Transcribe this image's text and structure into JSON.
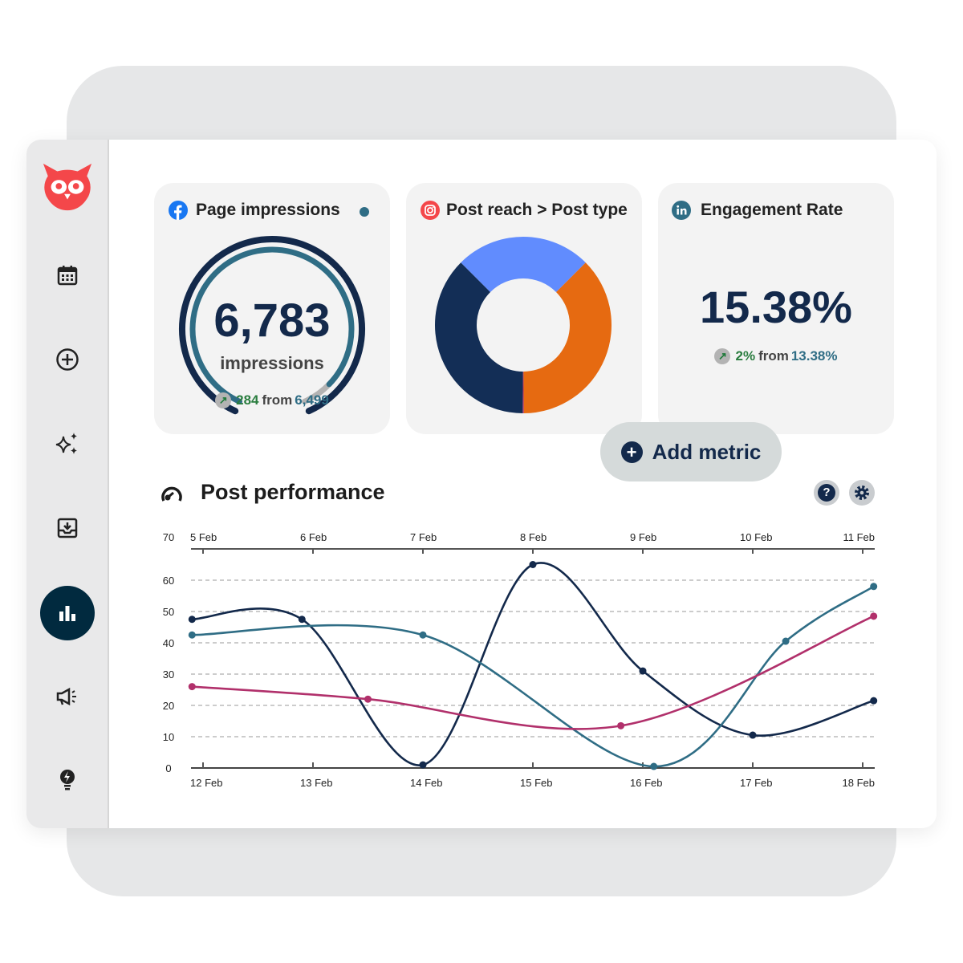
{
  "sidebar": {
    "items": [
      {
        "name": "calendar"
      },
      {
        "name": "compose"
      },
      {
        "name": "ai-assist"
      },
      {
        "name": "inbox"
      },
      {
        "name": "analytics",
        "active": true
      },
      {
        "name": "advertise"
      },
      {
        "name": "inspiration"
      }
    ]
  },
  "cards": {
    "impressions": {
      "title": "Page impressions",
      "value": "6,783",
      "unit": "impressions",
      "delta": "284",
      "from_label": "from",
      "previous": "6,499",
      "gauge_fill": 0.93,
      "icon": "facebook-icon",
      "color": "#1877f2"
    },
    "post_reach": {
      "title": "Post reach > Post type",
      "icon": "instagram-icon",
      "slices": [
        {
          "value": 25,
          "color": "#618cfe"
        },
        {
          "value": 37.4,
          "color": "#e66a11"
        },
        {
          "value": 0.2,
          "color": "#b1306b"
        },
        {
          "value": 37.4,
          "color": "#132e56"
        }
      ]
    },
    "engagement": {
      "title": "Engagement Rate",
      "value": "15.38%",
      "delta": "2%",
      "from_label": "from",
      "previous": "13.38%",
      "icon": "linkedin-icon"
    }
  },
  "add_metric": {
    "label": "Add metric"
  },
  "post_performance": {
    "title": "Post performance"
  },
  "chart_data": {
    "type": "line",
    "ylim": [
      0,
      70
    ],
    "yticks": [
      0,
      10,
      20,
      30,
      40,
      50,
      60,
      70
    ],
    "x_bottom_ticks": [
      "12 Feb",
      "13 Feb",
      "14 Feb",
      "15 Feb",
      "16 Feb",
      "17 Feb",
      "18 Feb"
    ],
    "x_top_ticks": [
      "5 Feb",
      "6 Feb",
      "7 Feb",
      "8 Feb",
      "9 Feb",
      "10 Feb",
      "11 Feb"
    ],
    "grid": true,
    "x_unit": "day of Feb (bottom axis)",
    "series": [
      {
        "color": "#13294b",
        "points": [
          [
            11.9,
            47.5
          ],
          [
            12.9,
            47.5
          ],
          [
            14,
            1
          ],
          [
            15,
            65
          ],
          [
            16,
            31
          ],
          [
            17,
            10.5
          ],
          [
            18.1,
            21.5
          ]
        ]
      },
      {
        "color": "#2f6d85",
        "points": [
          [
            11.9,
            42.5
          ],
          [
            14,
            42.5
          ],
          [
            16.1,
            0.5
          ],
          [
            17.3,
            40.5
          ],
          [
            18.1,
            58
          ]
        ]
      },
      {
        "color": "#b1306b",
        "points": [
          [
            11.9,
            26
          ],
          [
            13.5,
            22
          ],
          [
            15.8,
            13.5
          ],
          [
            18.1,
            48.5
          ]
        ]
      }
    ]
  }
}
